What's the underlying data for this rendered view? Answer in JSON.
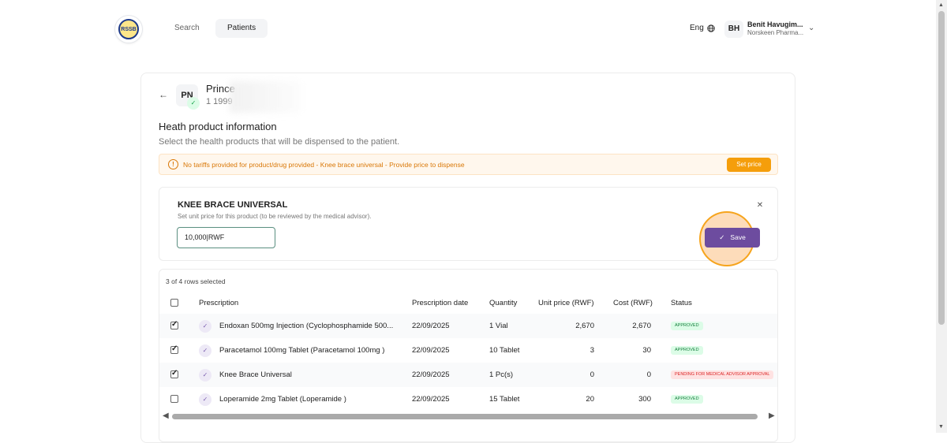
{
  "nav": {
    "logo_text": "RSSB",
    "search_label": "Search",
    "patients_label": "Patients",
    "language": "Eng",
    "user_initials": "BH",
    "user_name": "Benit Havugim...",
    "user_org": "Norskeen Pharma..."
  },
  "patient": {
    "initials": "PN",
    "name": "Prince",
    "id": "1 1999"
  },
  "section": {
    "title": "Heath product information",
    "subtitle": "Select the health products that will be dispensed to the patient."
  },
  "alert": {
    "text": "No tariffs provided for product/drug provided - Knee brace universal - Provide price to dispense",
    "button": "Set price"
  },
  "price_panel": {
    "title": "KNEE BRACE UNIVERSAL",
    "description": "Set unit price for this product (to be reviewed by the medical advisor).",
    "input_value": "10,000|RWF",
    "save_label": "Save"
  },
  "table": {
    "rows_selected": "3 of 4 rows selected",
    "headers": {
      "prescription": "Prescription",
      "date": "Prescription date",
      "quantity": "Quantity",
      "unit_price": "Unit price (RWF)",
      "cost": "Cost (RWF)",
      "status": "Status"
    },
    "rows": [
      {
        "checked": true,
        "name": "Endoxan 500mg Injection (Cyclophosphamide 500...",
        "date": "22/09/2025",
        "quantity": "1 Vial",
        "unit_price": "2,670",
        "cost": "2,670",
        "status": "APPROVED",
        "status_type": "ok"
      },
      {
        "checked": true,
        "name": "Paracetamol 100mg Tablet (Paracetamol 100mg )",
        "date": "22/09/2025",
        "quantity": "10 Tablet",
        "unit_price": "3",
        "cost": "30",
        "status": "APPROVED",
        "status_type": "ok"
      },
      {
        "checked": true,
        "name": "Knee Brace Universal",
        "date": "22/09/2025",
        "quantity": "1 Pc(s)",
        "unit_price": "0",
        "cost": "0",
        "status": "PENDING FOR MEDICAL ADVISOR APPROVAL",
        "status_type": "pending"
      },
      {
        "checked": false,
        "name": "Loperamide 2mg Tablet (Loperamide )",
        "date": "22/09/2025",
        "quantity": "15 Tablet",
        "unit_price": "20",
        "cost": "300",
        "status": "APPROVED",
        "status_type": "ok"
      }
    ]
  },
  "colors": {
    "accent_purple": "#6d4c9f",
    "warning_orange": "#f59e0b",
    "approved_green": "#15803d",
    "pending_red": "#dc2626"
  }
}
